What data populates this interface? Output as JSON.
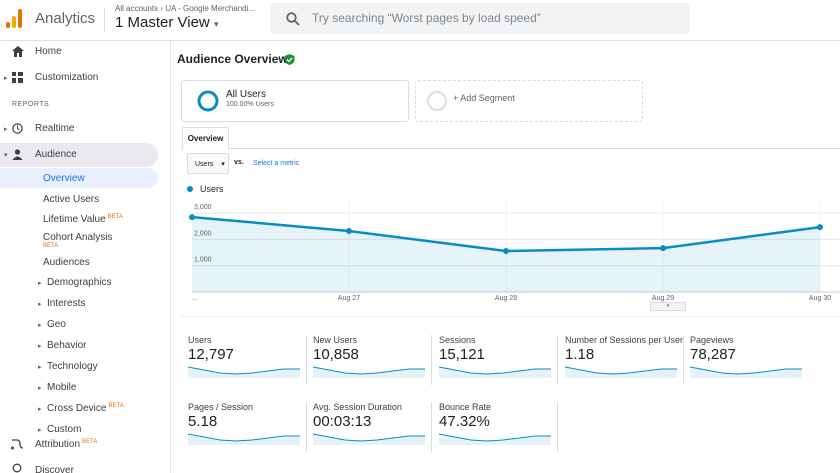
{
  "header": {
    "app_name": "Analytics",
    "account_path": [
      "All accounts",
      "UA - Google Merchandi..."
    ],
    "view": "1 Master View",
    "search_placeholder": "Try searching “Worst pages by load speed”"
  },
  "sidebar": {
    "top": [
      {
        "label": "Home"
      },
      {
        "label": "Customization"
      }
    ],
    "section_label": "REPORTS",
    "reports": [
      {
        "label": "Realtime"
      },
      {
        "label": "Audience"
      }
    ],
    "audience_items": [
      {
        "label": "Overview"
      },
      {
        "label": "Active Users"
      },
      {
        "label": "Lifetime Value",
        "badge": "BETA"
      },
      {
        "label": "Cohort Analysis",
        "badge": "BETA"
      },
      {
        "label": "Audiences"
      },
      {
        "label": "Demographics"
      },
      {
        "label": "Interests"
      },
      {
        "label": "Geo"
      },
      {
        "label": "Behavior"
      },
      {
        "label": "Technology"
      },
      {
        "label": "Mobile"
      },
      {
        "label": "Cross Device",
        "badge": "BETA"
      },
      {
        "label": "Custom"
      }
    ],
    "bottom": [
      {
        "label": "Attribution",
        "badge": "BETA"
      },
      {
        "label": "Discover"
      }
    ]
  },
  "main": {
    "title": "Audience Overview",
    "segments": [
      {
        "name": "All Users",
        "detail": "100.00% Users"
      },
      {
        "name": "+ Add Segment"
      }
    ],
    "tab": "Overview",
    "metric_select": "Users",
    "vs_label": "vs.",
    "select_metric": "Select a metric",
    "metrics": [
      {
        "label": "Users",
        "value": "12,797"
      },
      {
        "label": "New Users",
        "value": "10,858"
      },
      {
        "label": "Sessions",
        "value": "15,121"
      },
      {
        "label": "Number of Sessions per User",
        "value": "1.18"
      },
      {
        "label": "Pageviews",
        "value": "78,287"
      },
      {
        "label": "Pages / Session",
        "value": "5.18"
      },
      {
        "label": "Avg. Session Duration",
        "value": "00:03:13"
      },
      {
        "label": "Bounce Rate",
        "value": "47.32%"
      }
    ]
  },
  "chart_data": {
    "type": "line",
    "categories": [
      "...",
      "Aug 27",
      "Aug 28",
      "Aug 29",
      "Aug 30"
    ],
    "series": [
      {
        "name": "Users",
        "color": "#058dc7",
        "values": [
          2850,
          2320,
          1560,
          1670,
          2470
        ]
      }
    ],
    "ylim": [
      0,
      3500
    ],
    "yticks": [
      {
        "value": 1000,
        "label": "1,000"
      },
      {
        "value": 2000,
        "label": "2,000"
      },
      {
        "value": 3000,
        "label": "3,000"
      }
    ],
    "grid": true
  }
}
